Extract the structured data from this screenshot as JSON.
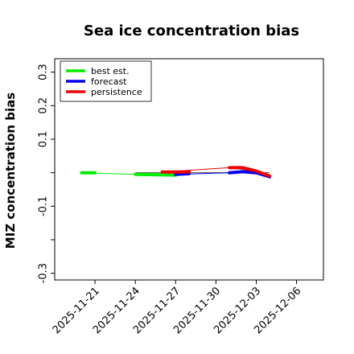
{
  "chart_data": {
    "type": "line",
    "title": "Sea ice concentration bias",
    "ylabel": "MIZ concentration bias",
    "ylim": [
      -0.32,
      0.34
    ],
    "xlim": [
      "2025-11-18",
      "2025-12-08"
    ],
    "yticks": [
      {
        "value": 0.3,
        "label": "0.3"
      },
      {
        "value": 0.2,
        "label": "0.2"
      },
      {
        "value": 0.1,
        "label": "0.1"
      },
      {
        "value": 0.0,
        "label": ""
      },
      {
        "value": -0.1,
        "label": "-0.1"
      },
      {
        "value": -0.2,
        "label": ""
      },
      {
        "value": -0.3,
        "label": "-0.3"
      }
    ],
    "xticks": [
      {
        "value": "2025-11-21",
        "label": "2025-11-21",
        "color": "#000000"
      },
      {
        "value": "2025-11-24",
        "label": "2025-11-24",
        "color": "#000000"
      },
      {
        "value": "2025-11-27",
        "label": "2025-11-27",
        "color": "#228b22"
      },
      {
        "value": "2025-11-30",
        "label": "2025-11-30",
        "color": "#000000"
      },
      {
        "value": "2025-12-03",
        "label": "2025-12-03",
        "color": "#000000"
      },
      {
        "value": "2025-12-06",
        "label": "2025-12-06",
        "color": "#000000"
      }
    ],
    "grid": false,
    "legend_position": "top-left",
    "series": [
      {
        "name": "best est.",
        "color": "#00ee00",
        "thin": [
          {
            "x": "2025-11-20",
            "y": 0.0
          },
          {
            "x": "2025-11-24",
            "y": -0.005
          },
          {
            "x": "2025-11-26",
            "y": -0.007
          }
        ],
        "thick": [
          [
            {
              "x": "2025-11-20",
              "y": 0.0
            },
            {
              "x": "2025-11-21",
              "y": 0.0
            }
          ],
          [
            {
              "x": "2025-11-24",
              "y": -0.005
            },
            {
              "x": "2025-11-27",
              "y": -0.007
            }
          ]
        ]
      },
      {
        "name": "forecast",
        "color": "#0000ee",
        "thin": [
          {
            "x": "2025-11-27",
            "y": -0.005
          },
          {
            "x": "2025-12-01",
            "y": 0.0
          },
          {
            "x": "2025-12-03",
            "y": 0.0
          },
          {
            "x": "2025-12-04",
            "y": -0.012
          }
        ],
        "thick": [
          [
            {
              "x": "2025-11-27",
              "y": -0.005
            },
            {
              "x": "2025-11-28",
              "y": -0.003
            }
          ],
          [
            {
              "x": "2025-12-01",
              "y": 0.0
            },
            {
              "x": "2025-12-02",
              "y": 0.003
            },
            {
              "x": "2025-12-03",
              "y": 0.0
            },
            {
              "x": "2025-12-04",
              "y": -0.012
            }
          ]
        ]
      },
      {
        "name": "persistence",
        "color": "#ee0000",
        "thin": [
          {
            "x": "2025-11-26",
            "y": 0.002
          },
          {
            "x": "2025-12-01",
            "y": 0.015
          },
          {
            "x": "2025-12-03",
            "y": 0.005
          },
          {
            "x": "2025-12-04",
            "y": -0.01
          }
        ],
        "thick": [
          [
            {
              "x": "2025-11-26",
              "y": 0.002
            },
            {
              "x": "2025-11-28",
              "y": 0.002
            }
          ],
          [
            {
              "x": "2025-12-01",
              "y": 0.015
            },
            {
              "x": "2025-12-02",
              "y": 0.015
            },
            {
              "x": "2025-12-03",
              "y": 0.005
            },
            {
              "x": "2025-12-04",
              "y": -0.01
            }
          ]
        ]
      }
    ],
    "reference_line": {
      "color": "#555555",
      "start": "2025-11-24",
      "end": "2025-12-04",
      "y": 0.0
    }
  }
}
